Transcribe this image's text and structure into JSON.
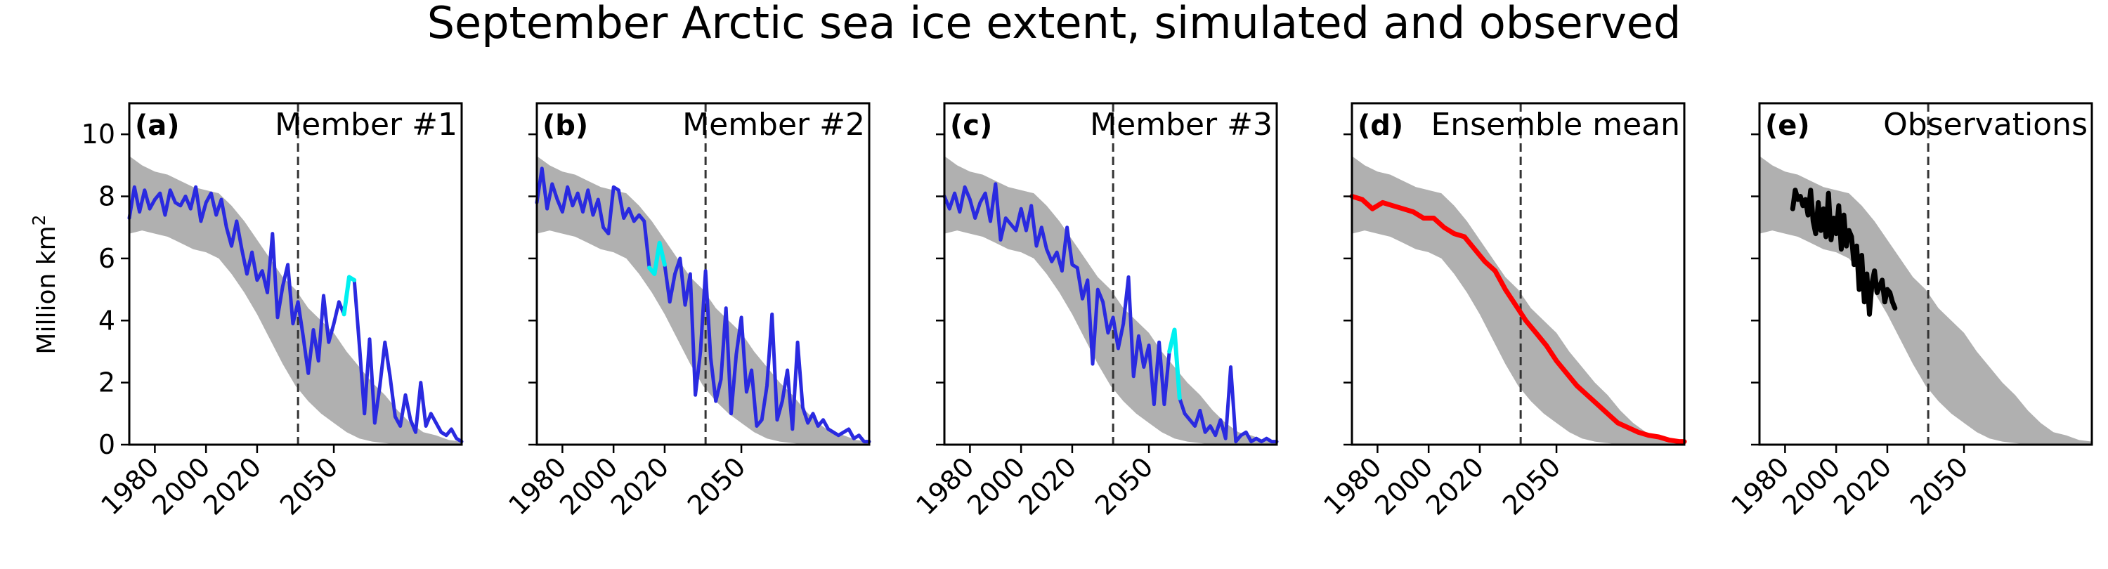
{
  "figure": {
    "title": "September Arctic sea ice extent, simulated and observed",
    "ylabel_text": "Million km",
    "ylabel_sup": "2"
  },
  "colors": {
    "envelope": "#b0b0b0",
    "member": "#2a2ae0",
    "highlight": "#00f0f0",
    "ensemble_mean": "#ff0000",
    "observations": "#000000"
  },
  "chart_data": [
    {
      "type": "line",
      "panel_label": "(a)",
      "title": "Member #1",
      "title_color": "#000000",
      "xlim": [
        1970,
        2100
      ],
      "ylim": [
        0,
        11
      ],
      "xticks": [
        1980,
        2000,
        2020,
        2050
      ],
      "yticks": [
        0,
        2,
        4,
        6,
        8,
        10
      ],
      "reference_year": 2036,
      "envelope": {
        "x": [
          1970,
          1975,
          1980,
          1985,
          1990,
          1995,
          2000,
          2005,
          2010,
          2015,
          2020,
          2025,
          2030,
          2035,
          2040,
          2045,
          2050,
          2055,
          2060,
          2065,
          2070,
          2075,
          2080,
          2085,
          2090,
          2095,
          2100
        ],
        "lower": [
          6.8,
          6.9,
          6.8,
          6.7,
          6.5,
          6.3,
          6.2,
          6.0,
          5.5,
          4.9,
          4.2,
          3.4,
          2.6,
          1.9,
          1.4,
          1.0,
          0.7,
          0.4,
          0.2,
          0.1,
          0.05,
          0,
          0,
          0,
          0,
          0,
          0
        ],
        "upper": [
          9.3,
          9.0,
          8.8,
          8.7,
          8.5,
          8.3,
          8.2,
          8.1,
          7.7,
          7.2,
          6.6,
          6.0,
          5.4,
          5.0,
          4.4,
          4.0,
          3.6,
          3.0,
          2.5,
          2.0,
          1.6,
          1.1,
          0.7,
          0.4,
          0.3,
          0.15,
          0.1
        ]
      },
      "series": [
        {
          "role": "member",
          "color": "#2a2ae0",
          "x": [
            1970,
            1972,
            1974,
            1976,
            1978,
            1980,
            1982,
            1984,
            1986,
            1988,
            1990,
            1992,
            1994,
            1996,
            1998,
            2000,
            2002,
            2004,
            2006,
            2008,
            2010,
            2012,
            2014,
            2016,
            2018,
            2020,
            2022,
            2024,
            2026,
            2028,
            2030,
            2032,
            2034,
            2036,
            2038,
            2040,
            2042,
            2044,
            2046,
            2048,
            2050,
            2052,
            2054,
            2056,
            2058,
            2060,
            2062,
            2064,
            2066,
            2068,
            2070,
            2072,
            2074,
            2076,
            2078,
            2080,
            2082,
            2084,
            2086,
            2088,
            2090,
            2092,
            2094,
            2096,
            2098,
            2100
          ],
          "y": [
            7.3,
            8.3,
            7.5,
            8.2,
            7.6,
            7.9,
            8.1,
            7.4,
            8.2,
            7.8,
            7.7,
            8.0,
            7.6,
            8.3,
            7.2,
            7.8,
            8.1,
            7.4,
            7.9,
            7.0,
            6.4,
            7.2,
            6.3,
            5.5,
            6.2,
            5.3,
            5.6,
            4.9,
            6.8,
            4.1,
            5.1,
            5.8,
            3.9,
            4.6,
            3.5,
            2.3,
            3.7,
            2.7,
            4.8,
            3.3,
            3.9,
            4.6,
            4.2,
            5.4,
            5.3,
            3.2,
            1.0,
            3.4,
            0.7,
            1.9,
            3.3,
            2.2,
            0.9,
            0.6,
            1.6,
            0.8,
            0.4,
            2.0,
            0.6,
            1.0,
            0.7,
            0.4,
            0.3,
            0.5,
            0.2,
            0.1
          ],
          "highlight_x_range": [
            2053,
            2058
          ]
        }
      ]
    },
    {
      "type": "line",
      "panel_label": "(b)",
      "title": "Member #2",
      "title_color": "#000000",
      "xlim": [
        1970,
        2100
      ],
      "ylim": [
        0,
        11
      ],
      "xticks": [
        1980,
        2000,
        2020,
        2050
      ],
      "yticks": [
        0,
        2,
        4,
        6,
        8,
        10
      ],
      "reference_year": 2036,
      "envelope": {
        "x": [
          1970,
          1975,
          1980,
          1985,
          1990,
          1995,
          2000,
          2005,
          2010,
          2015,
          2020,
          2025,
          2030,
          2035,
          2040,
          2045,
          2050,
          2055,
          2060,
          2065,
          2070,
          2075,
          2080,
          2085,
          2090,
          2095,
          2100
        ],
        "lower": [
          6.8,
          6.9,
          6.8,
          6.7,
          6.5,
          6.3,
          6.2,
          6.0,
          5.5,
          4.9,
          4.2,
          3.4,
          2.6,
          1.9,
          1.4,
          1.0,
          0.7,
          0.4,
          0.2,
          0.1,
          0.05,
          0,
          0,
          0,
          0,
          0,
          0
        ],
        "upper": [
          9.3,
          9.0,
          8.8,
          8.7,
          8.5,
          8.3,
          8.2,
          8.1,
          7.7,
          7.2,
          6.6,
          6.0,
          5.4,
          5.0,
          4.4,
          4.0,
          3.6,
          3.0,
          2.5,
          2.0,
          1.6,
          1.1,
          0.7,
          0.4,
          0.3,
          0.15,
          0.1
        ]
      },
      "series": [
        {
          "role": "member",
          "color": "#2a2ae0",
          "x": [
            1970,
            1972,
            1974,
            1976,
            1978,
            1980,
            1982,
            1984,
            1986,
            1988,
            1990,
            1992,
            1994,
            1996,
            1998,
            2000,
            2002,
            2004,
            2006,
            2008,
            2010,
            2012,
            2014,
            2016,
            2018,
            2020,
            2022,
            2024,
            2026,
            2028,
            2030,
            2032,
            2034,
            2036,
            2038,
            2040,
            2042,
            2044,
            2046,
            2048,
            2050,
            2052,
            2054,
            2056,
            2058,
            2060,
            2062,
            2064,
            2066,
            2068,
            2070,
            2072,
            2074,
            2076,
            2078,
            2080,
            2082,
            2084,
            2086,
            2088,
            2090,
            2092,
            2094,
            2096,
            2098,
            2100
          ],
          "y": [
            7.8,
            8.9,
            7.6,
            8.4,
            7.9,
            7.5,
            8.3,
            7.7,
            8.1,
            7.5,
            8.2,
            7.4,
            7.9,
            7.0,
            6.8,
            8.3,
            8.2,
            7.3,
            7.6,
            7.2,
            7.4,
            7.2,
            5.7,
            5.5,
            6.5,
            5.8,
            4.6,
            5.5,
            6.0,
            4.5,
            5.5,
            1.6,
            3.0,
            5.6,
            2.8,
            1.4,
            2.1,
            4.4,
            1.0,
            2.9,
            4.1,
            1.7,
            2.4,
            0.6,
            0.8,
            1.9,
            4.2,
            0.8,
            1.4,
            2.4,
            0.5,
            3.3,
            1.2,
            0.7,
            1.0,
            0.6,
            0.8,
            0.5,
            0.4,
            0.3,
            0.4,
            0.5,
            0.2,
            0.3,
            0.1,
            0.1
          ],
          "highlight_x_range": [
            2014,
            2020
          ]
        }
      ]
    },
    {
      "type": "line",
      "panel_label": "(c)",
      "title": "Member #3",
      "title_color": "#000000",
      "xlim": [
        1970,
        2100
      ],
      "ylim": [
        0,
        11
      ],
      "xticks": [
        1980,
        2000,
        2020,
        2050
      ],
      "yticks": [
        0,
        2,
        4,
        6,
        8,
        10
      ],
      "reference_year": 2036,
      "envelope": {
        "x": [
          1970,
          1975,
          1980,
          1985,
          1990,
          1995,
          2000,
          2005,
          2010,
          2015,
          2020,
          2025,
          2030,
          2035,
          2040,
          2045,
          2050,
          2055,
          2060,
          2065,
          2070,
          2075,
          2080,
          2085,
          2090,
          2095,
          2100
        ],
        "lower": [
          6.8,
          6.9,
          6.8,
          6.7,
          6.5,
          6.3,
          6.2,
          6.0,
          5.5,
          4.9,
          4.2,
          3.4,
          2.6,
          1.9,
          1.4,
          1.0,
          0.7,
          0.4,
          0.2,
          0.1,
          0.05,
          0,
          0,
          0,
          0,
          0,
          0
        ],
        "upper": [
          9.3,
          9.0,
          8.8,
          8.7,
          8.5,
          8.3,
          8.2,
          8.1,
          7.7,
          7.2,
          6.6,
          6.0,
          5.4,
          5.0,
          4.4,
          4.0,
          3.6,
          3.0,
          2.5,
          2.0,
          1.6,
          1.1,
          0.7,
          0.4,
          0.3,
          0.15,
          0.1
        ]
      },
      "series": [
        {
          "role": "member",
          "color": "#2a2ae0",
          "x": [
            1970,
            1972,
            1974,
            1976,
            1978,
            1980,
            1982,
            1984,
            1986,
            1988,
            1990,
            1992,
            1994,
            1996,
            1998,
            2000,
            2002,
            2004,
            2006,
            2008,
            2010,
            2012,
            2014,
            2016,
            2018,
            2020,
            2022,
            2024,
            2026,
            2028,
            2030,
            2032,
            2034,
            2036,
            2038,
            2040,
            2042,
            2044,
            2046,
            2048,
            2050,
            2052,
            2054,
            2056,
            2058,
            2060,
            2062,
            2064,
            2066,
            2068,
            2070,
            2072,
            2074,
            2076,
            2078,
            2080,
            2082,
            2084,
            2086,
            2088,
            2090,
            2092,
            2094,
            2096,
            2098,
            2100
          ],
          "y": [
            8.0,
            7.6,
            8.1,
            7.5,
            8.3,
            7.9,
            7.3,
            7.8,
            8.1,
            7.2,
            8.4,
            6.6,
            7.3,
            7.1,
            6.9,
            7.6,
            6.9,
            7.7,
            6.4,
            7.0,
            6.3,
            5.9,
            6.2,
            5.6,
            7.0,
            5.8,
            5.7,
            4.7,
            5.3,
            2.6,
            5.0,
            4.6,
            3.6,
            4.1,
            3.1,
            3.9,
            5.4,
            2.2,
            3.5,
            2.5,
            3.2,
            1.3,
            3.3,
            1.3,
            3.0,
            3.7,
            1.5,
            1.0,
            0.8,
            0.6,
            1.1,
            0.4,
            0.6,
            0.3,
            0.8,
            0.2,
            2.5,
            0.1,
            0.3,
            0.4,
            0.1,
            0.2,
            0.1,
            0.2,
            0.1,
            0.1
          ],
          "highlight_x_range": [
            2057,
            2062
          ]
        }
      ]
    },
    {
      "type": "line",
      "panel_label": "(d)",
      "title": "Ensemble mean",
      "title_color": "#ff0000",
      "xlim": [
        1970,
        2100
      ],
      "ylim": [
        0,
        11
      ],
      "xticks": [
        1980,
        2000,
        2020,
        2050
      ],
      "yticks": [
        0,
        2,
        4,
        6,
        8,
        10
      ],
      "reference_year": 2036,
      "envelope": {
        "x": [
          1970,
          1975,
          1980,
          1985,
          1990,
          1995,
          2000,
          2005,
          2010,
          2015,
          2020,
          2025,
          2030,
          2035,
          2040,
          2045,
          2050,
          2055,
          2060,
          2065,
          2070,
          2075,
          2080,
          2085,
          2090,
          2095,
          2100
        ],
        "lower": [
          6.8,
          6.9,
          6.8,
          6.7,
          6.5,
          6.3,
          6.2,
          6.0,
          5.5,
          4.9,
          4.2,
          3.4,
          2.6,
          1.9,
          1.4,
          1.0,
          0.7,
          0.4,
          0.2,
          0.1,
          0.05,
          0,
          0,
          0,
          0,
          0,
          0
        ],
        "upper": [
          9.3,
          9.0,
          8.8,
          8.7,
          8.5,
          8.3,
          8.2,
          8.1,
          7.7,
          7.2,
          6.6,
          6.0,
          5.4,
          5.0,
          4.4,
          4.0,
          3.6,
          3.0,
          2.5,
          2.0,
          1.6,
          1.1,
          0.7,
          0.4,
          0.3,
          0.15,
          0.1
        ]
      },
      "series": [
        {
          "role": "ensemble_mean",
          "color": "#ff0000",
          "x": [
            1970,
            1974,
            1978,
            1982,
            1986,
            1990,
            1994,
            1998,
            2002,
            2006,
            2010,
            2014,
            2018,
            2022,
            2026,
            2030,
            2034,
            2038,
            2042,
            2046,
            2050,
            2054,
            2058,
            2062,
            2066,
            2070,
            2074,
            2078,
            2082,
            2086,
            2090,
            2094,
            2098,
            2100
          ],
          "y": [
            8.0,
            7.9,
            7.6,
            7.8,
            7.7,
            7.6,
            7.5,
            7.3,
            7.3,
            7.0,
            6.8,
            6.7,
            6.3,
            5.9,
            5.6,
            5.0,
            4.5,
            4.0,
            3.6,
            3.2,
            2.7,
            2.3,
            1.9,
            1.6,
            1.3,
            1.0,
            0.7,
            0.55,
            0.4,
            0.3,
            0.25,
            0.15,
            0.1,
            0.1
          ]
        }
      ]
    },
    {
      "type": "line",
      "panel_label": "(e)",
      "title": "Observations",
      "title_color": "#000000",
      "xlim": [
        1970,
        2100
      ],
      "ylim": [
        0,
        11
      ],
      "xticks": [
        1980,
        2000,
        2020,
        2050
      ],
      "yticks": [
        0,
        2,
        4,
        6,
        8,
        10
      ],
      "reference_year": 2036,
      "envelope": {
        "x": [
          1970,
          1975,
          1980,
          1985,
          1990,
          1995,
          2000,
          2005,
          2010,
          2015,
          2020,
          2025,
          2030,
          2035,
          2040,
          2045,
          2050,
          2055,
          2060,
          2065,
          2070,
          2075,
          2080,
          2085,
          2090,
          2095,
          2100
        ],
        "lower": [
          6.8,
          6.9,
          6.8,
          6.7,
          6.5,
          6.3,
          6.2,
          6.0,
          5.5,
          4.9,
          4.2,
          3.4,
          2.6,
          1.9,
          1.4,
          1.0,
          0.7,
          0.4,
          0.2,
          0.1,
          0.05,
          0,
          0,
          0,
          0,
          0,
          0
        ],
        "upper": [
          9.3,
          9.0,
          8.8,
          8.7,
          8.5,
          8.3,
          8.2,
          8.1,
          7.7,
          7.2,
          6.6,
          6.0,
          5.4,
          5.0,
          4.4,
          4.0,
          3.6,
          3.0,
          2.5,
          2.0,
          1.6,
          1.1,
          0.7,
          0.4,
          0.3,
          0.15,
          0.1
        ]
      },
      "series": [
        {
          "role": "observations",
          "color": "#000000",
          "x": [
            1983,
            1984,
            1985,
            1986,
            1987,
            1988,
            1989,
            1990,
            1991,
            1992,
            1993,
            1994,
            1995,
            1996,
            1997,
            1998,
            1999,
            2000,
            2001,
            2002,
            2003,
            2004,
            2005,
            2006,
            2007,
            2008,
            2009,
            2010,
            2011,
            2012,
            2013,
            2014,
            2015,
            2016,
            2017,
            2018,
            2019,
            2020,
            2021,
            2022,
            2023
          ],
          "y": [
            7.6,
            8.2,
            7.9,
            8.0,
            7.7,
            7.9,
            7.4,
            8.2,
            7.2,
            6.8,
            7.8,
            6.9,
            7.6,
            6.7,
            8.1,
            6.6,
            7.3,
            6.8,
            7.7,
            6.3,
            7.4,
            6.4,
            6.9,
            6.7,
            5.8,
            6.4,
            5.0,
            6.1,
            4.6,
            5.5,
            4.2,
            5.2,
            5.6,
            4.9,
            5.1,
            5.3,
            4.6,
            5.0,
            4.9,
            4.6,
            4.4
          ]
        }
      ]
    }
  ]
}
